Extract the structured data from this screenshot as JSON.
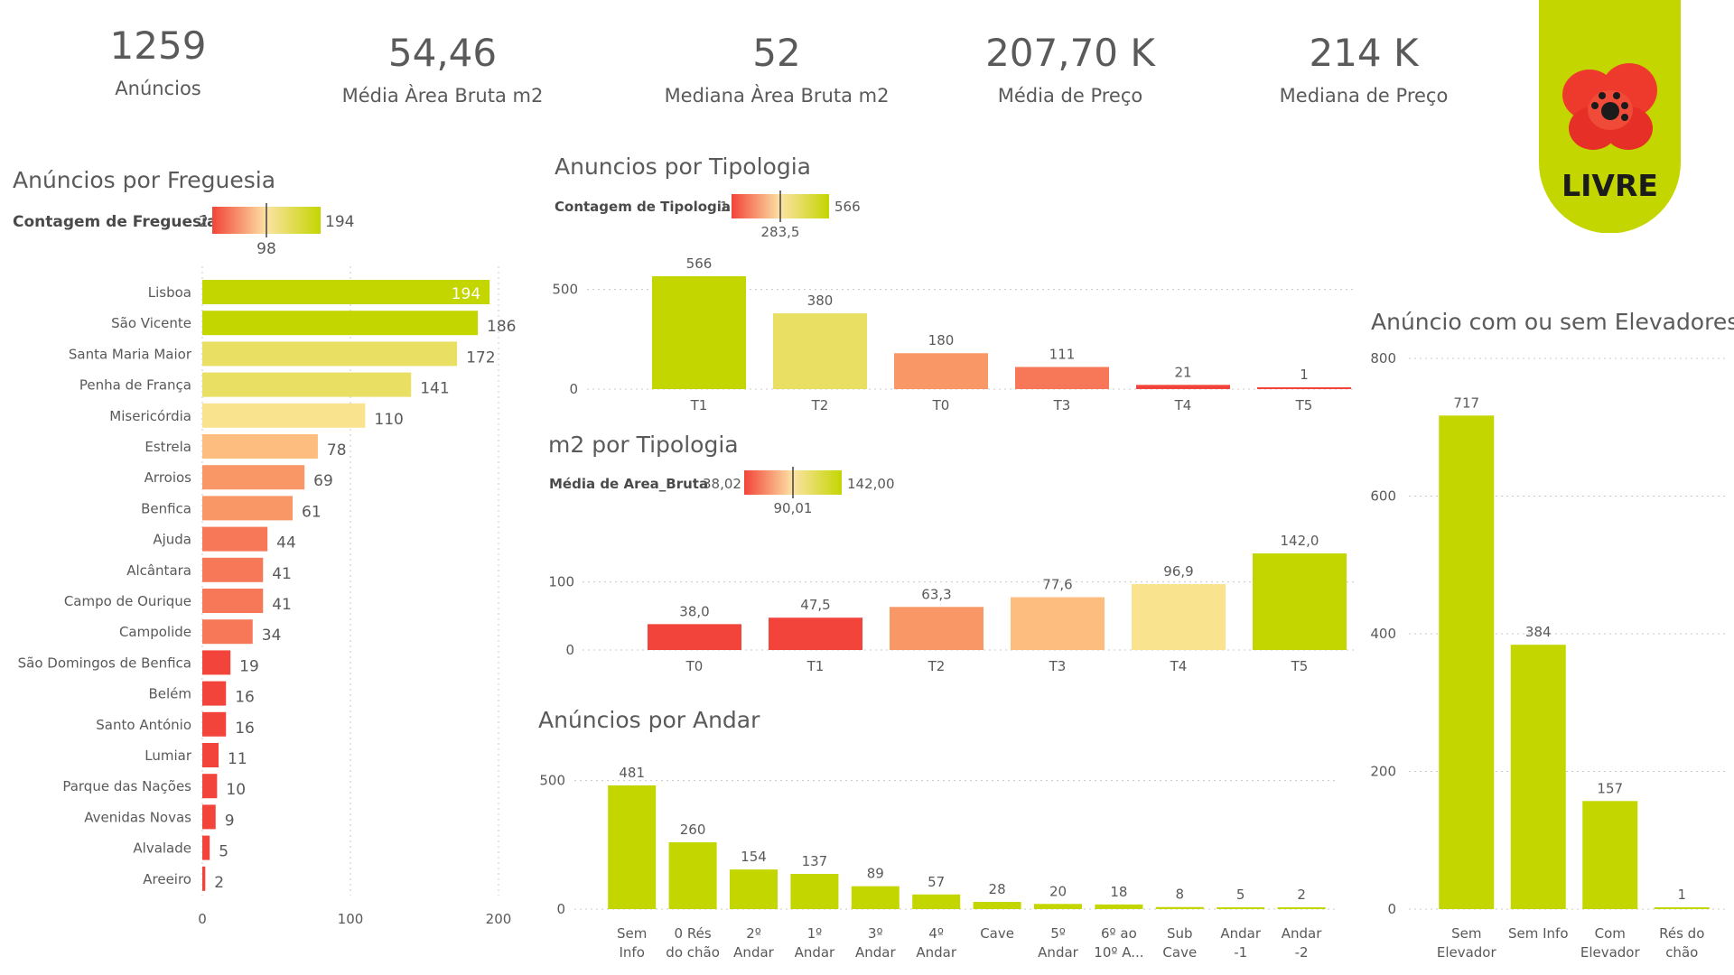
{
  "colors": {
    "green": "#c4d600",
    "yellow": "#e9e063",
    "lightyellow": "#f9e38e",
    "peach": "#fcbd7f",
    "orange": "#f99866",
    "coral": "#f77858",
    "red": "#f2443a"
  },
  "kpis": [
    {
      "value": "1259",
      "label": "Anúncios"
    },
    {
      "value": "54,46",
      "label": "Média Àrea Bruta m2"
    },
    {
      "value": "52",
      "label": "Mediana Àrea Bruta m2"
    },
    {
      "value": "207,70 K",
      "label": "Média de Preço"
    },
    {
      "value": "214 K",
      "label": "Mediana de Preço"
    }
  ],
  "logo": {
    "text": "LIVRE",
    "icon": "poppy-flower-icon"
  },
  "chart_data": [
    {
      "id": "freguesia",
      "type": "bar",
      "orientation": "horizontal",
      "title": "Anúncios por Freguesia",
      "legend": {
        "label": "Contagem de Freguesia",
        "min": "2",
        "mid": "98",
        "max": "194"
      },
      "categories": [
        "Lisboa",
        "São Vicente",
        "Santa Maria Maior",
        "Penha de França",
        "Misericórdia",
        "Estrela",
        "Arroios",
        "Benfica",
        "Ajuda",
        "Alcântara",
        "Campo de Ourique",
        "Campolide",
        "São Domingos de Benfica",
        "Belém",
        "Santo António",
        "Lumiar",
        "Parque das Nações",
        "Avenidas Novas",
        "Alvalade",
        "Areeiro"
      ],
      "values": [
        194,
        186,
        172,
        141,
        110,
        78,
        69,
        61,
        44,
        41,
        41,
        34,
        19,
        16,
        16,
        11,
        10,
        9,
        5,
        2
      ],
      "xlim": [
        0,
        200
      ],
      "xticks": [
        0,
        100,
        200
      ],
      "grid": true
    },
    {
      "id": "tipologia",
      "type": "bar",
      "title": "Anuncios por Tipologia",
      "legend": {
        "label": "Contagem de Tipologia",
        "min": "1",
        "mid": "283,5",
        "max": "566"
      },
      "categories": [
        "T1",
        "T2",
        "T0",
        "T3",
        "T4",
        "T5"
      ],
      "values": [
        566,
        380,
        180,
        111,
        21,
        1
      ],
      "labels": [
        "566",
        "380",
        "180",
        "111",
        "21",
        "1"
      ],
      "ylim": [
        0,
        566
      ],
      "yticks": [
        0,
        500
      ],
      "grid": true
    },
    {
      "id": "m2",
      "type": "bar",
      "title": "m2 por Tipologia",
      "legend": {
        "label": "Média de Area_Bruta",
        "min": "38,02",
        "mid": "90,01",
        "max": "142,00"
      },
      "categories": [
        "T0",
        "T1",
        "T2",
        "T3",
        "T4",
        "T5"
      ],
      "values": [
        38.0,
        47.5,
        63.3,
        77.6,
        96.9,
        142.0
      ],
      "labels": [
        "38,0",
        "47,5",
        "63,3",
        "77,6",
        "96,9",
        "142,0"
      ],
      "ylim": [
        0,
        142
      ],
      "yticks": [
        0,
        100
      ],
      "grid": true
    },
    {
      "id": "andar",
      "type": "bar",
      "title": "Anúncios por Andar",
      "categories": [
        [
          "Sem",
          "Info"
        ],
        [
          "0 Rés",
          "do chão"
        ],
        [
          "2º",
          "Andar"
        ],
        [
          "1º",
          "Andar"
        ],
        [
          "3º",
          "Andar"
        ],
        [
          "4º",
          "Andar"
        ],
        [
          "Cave"
        ],
        [
          "5º",
          "Andar"
        ],
        [
          "6º ao",
          "10º A..."
        ],
        [
          "Sub",
          "Cave"
        ],
        [
          "Andar",
          "-1"
        ],
        [
          "Andar",
          "-2"
        ]
      ],
      "values": [
        481,
        260,
        154,
        137,
        89,
        57,
        28,
        20,
        18,
        8,
        5,
        2
      ],
      "labels": [
        "481",
        "260",
        "154",
        "137",
        "89",
        "57",
        "28",
        "20",
        "18",
        "8",
        "5",
        "2"
      ],
      "ylim": [
        0,
        481
      ],
      "yticks": [
        0,
        500
      ],
      "grid": true
    },
    {
      "id": "elevadores",
      "type": "bar",
      "title": "Anúncio com ou sem Elevadores",
      "categories": [
        [
          "Sem",
          "Elevador"
        ],
        [
          "Sem Info"
        ],
        [
          "Com",
          "Elevador"
        ],
        [
          "Rés do",
          "chão"
        ]
      ],
      "values": [
        717,
        384,
        157,
        1
      ],
      "labels": [
        "717",
        "384",
        "157",
        "1"
      ],
      "ylim": [
        0,
        800
      ],
      "yticks": [
        0,
        200,
        400,
        600,
        800
      ],
      "grid": true
    }
  ]
}
